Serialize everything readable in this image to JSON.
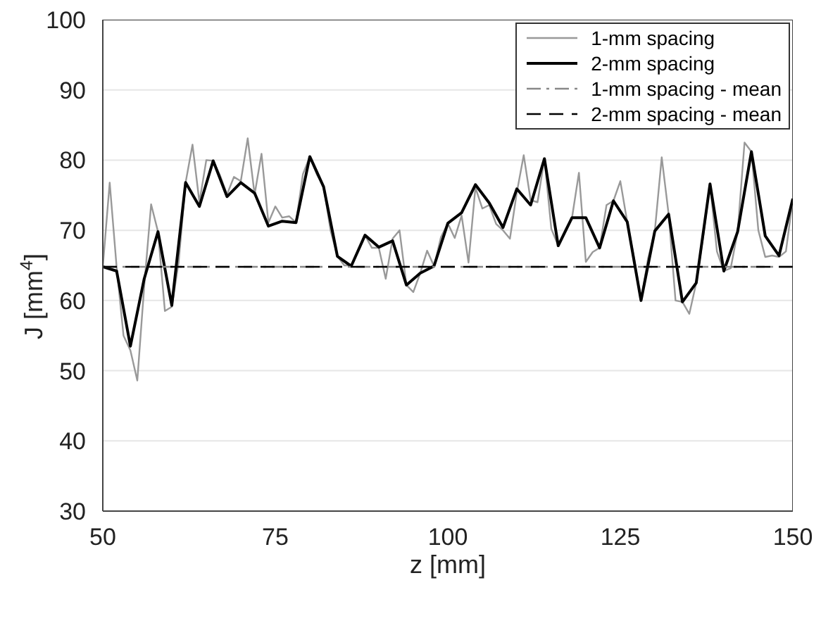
{
  "chart_data": {
    "type": "line",
    "xlabel": "z [mm]",
    "ylabel": "J [mm$^{4}$]",
    "xlim": [
      50,
      150
    ],
    "xticks": [
      50,
      75,
      100,
      125,
      150
    ],
    "ylim": [
      30,
      100
    ],
    "yticks": [
      30,
      40,
      50,
      60,
      70,
      80,
      90,
      100
    ],
    "grid": "y",
    "legend": "top right",
    "x": [
      50,
      51,
      52,
      53,
      54,
      55,
      56,
      57,
      58,
      59,
      60,
      61,
      62,
      63,
      64,
      65,
      66,
      67,
      68,
      69,
      70,
      71,
      72,
      73,
      74,
      75,
      76,
      77,
      78,
      79,
      80,
      81,
      82,
      83,
      84,
      85,
      86,
      87,
      88,
      89,
      90,
      91,
      92,
      93,
      94,
      95,
      96,
      97,
      98,
      99,
      100,
      101,
      102,
      103,
      104,
      105,
      106,
      107,
      108,
      109,
      110,
      111,
      112,
      113,
      114,
      115,
      116,
      117,
      118,
      119,
      120,
      121,
      122,
      123,
      124,
      125,
      126,
      127,
      128,
      129,
      130,
      131,
      132,
      133,
      134,
      135,
      136,
      137,
      138,
      139,
      140,
      141,
      142,
      143,
      144,
      145,
      146,
      147,
      148,
      149,
      150
    ],
    "series": [
      {
        "name": "1-mm spacing",
        "color": "#999999",
        "line_style": "solid",
        "values": [
          64.8,
          76.8,
          64.8,
          55,
          52.9,
          48.6,
          62,
          73.7,
          69.8,
          58.5,
          59.1,
          65.5,
          76.8,
          82.2,
          74,
          80,
          79.9,
          77.8,
          75.1,
          77.6,
          77,
          83.1,
          75.1,
          80.9,
          71.1,
          73.4,
          71.8,
          72,
          71.1,
          78,
          80.5,
          78,
          76.2,
          70,
          66.3,
          65,
          65,
          67,
          69.3,
          67.5,
          67.5,
          63.1,
          68.8,
          70,
          62.2,
          61.2,
          63.9,
          67.1,
          64.9,
          69,
          71,
          68.9,
          72.1,
          65.4,
          76.1,
          73.1,
          73.6,
          70.9,
          70,
          68.8,
          75.4,
          80.7,
          74.3,
          74,
          80.2,
          70.2,
          67.8,
          70,
          71.8,
          78.2,
          65.5,
          66.9,
          67.5,
          73.6,
          74.2,
          77,
          71.2,
          66,
          60,
          65.9,
          69.9,
          80.4,
          72.3,
          60,
          59.8,
          58.1,
          62.5,
          69,
          76.6,
          67,
          64.2,
          64.6,
          69.8,
          82.5,
          81.2,
          70,
          66.2,
          66.4,
          66.2,
          67,
          74.5
        ]
      },
      {
        "name": "2-mm spacing",
        "color": "#000000",
        "line_style": "solid",
        "x": [
          50,
          52,
          54,
          56,
          58,
          60,
          62,
          64,
          66,
          68,
          70,
          72,
          74,
          76,
          78,
          80,
          82,
          84,
          86,
          88,
          90,
          92,
          94,
          96,
          98,
          100,
          102,
          104,
          106,
          108,
          110,
          112,
          114,
          116,
          118,
          120,
          122,
          124,
          126,
          128,
          130,
          132,
          134,
          136,
          138,
          140,
          142,
          144,
          146,
          148,
          150
        ],
        "values": [
          64.8,
          64.2,
          53.5,
          63.1,
          69.8,
          59.3,
          76.8,
          73.4,
          79.9,
          74.8,
          76.8,
          75.3,
          70.6,
          71.3,
          71.1,
          80.5,
          76.2,
          66.3,
          64.9,
          69.3,
          67.6,
          68.5,
          62.2,
          63.9,
          64.9,
          71,
          72.5,
          76.5,
          73.9,
          70.4,
          75.9,
          73.6,
          80.2,
          67.8,
          71.8,
          71.8,
          67.5,
          74.2,
          71.2,
          60,
          69.9,
          72.3,
          59.8,
          62.5,
          76.6,
          64.2,
          69.8,
          81.2,
          69.2,
          66.4,
          74.5
        ]
      },
      {
        "name": "1-mm spacing - mean",
        "color": "#888888",
        "line_style": "dashdot",
        "x": [
          50,
          150
        ],
        "values": [
          64.8,
          64.8
        ]
      },
      {
        "name": "2-mm spacing - mean",
        "color": "#000000",
        "line_style": "dashed",
        "x": [
          50,
          150
        ],
        "values": [
          64.8,
          64.8
        ]
      }
    ]
  }
}
